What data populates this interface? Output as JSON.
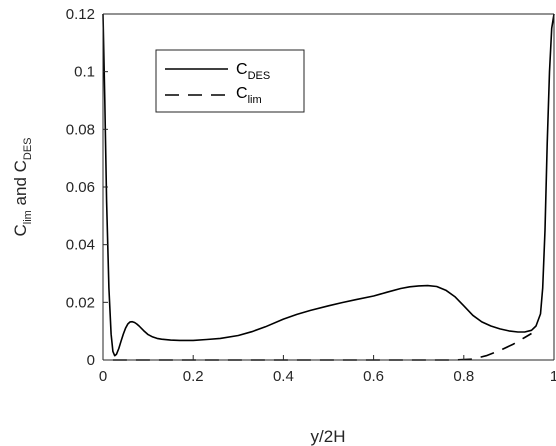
{
  "chart_data": {
    "type": "line",
    "xlabel": "y/2H",
    "ylabel": {
      "main1": "C",
      "sub1": "lim",
      "mid": " and C",
      "sub2": "DES"
    },
    "xlim": [
      0,
      1
    ],
    "ylim": [
      0,
      0.12
    ],
    "xticks": [
      0,
      0.2,
      0.4,
      0.6,
      0.8,
      1
    ],
    "xtick_labels": [
      "0",
      "0.2",
      "0.4",
      "0.6",
      "0.8",
      "1"
    ],
    "yticks": [
      0,
      0.02,
      0.04,
      0.06,
      0.08,
      0.1,
      0.12
    ],
    "ytick_labels": [
      "0",
      "0.02",
      "0.04",
      "0.06",
      "0.08",
      "0.1",
      "0.12"
    ],
    "grid": false,
    "legend_position": "top-left",
    "series": [
      {
        "name_main": "C",
        "name_sub": "DES",
        "style": "solid",
        "color": "#000000",
        "x": [
          0,
          0.004,
          0.008,
          0.013,
          0.018,
          0.022,
          0.026,
          0.03,
          0.035,
          0.04,
          0.045,
          0.05,
          0.055,
          0.06,
          0.065,
          0.07,
          0.075,
          0.08,
          0.09,
          0.1,
          0.11,
          0.12,
          0.13,
          0.15,
          0.17,
          0.2,
          0.23,
          0.26,
          0.3,
          0.33,
          0.36,
          0.4,
          0.43,
          0.46,
          0.5,
          0.53,
          0.56,
          0.6,
          0.63,
          0.66,
          0.68,
          0.7,
          0.72,
          0.74,
          0.76,
          0.78,
          0.8,
          0.82,
          0.84,
          0.86,
          0.88,
          0.9,
          0.92,
          0.935,
          0.95,
          0.96,
          0.97,
          0.975,
          0.98,
          0.985,
          0.99,
          0.995,
          1
        ],
        "y": [
          0.12,
          0.09,
          0.055,
          0.025,
          0.009,
          0.003,
          0.0015,
          0.002,
          0.004,
          0.0065,
          0.009,
          0.011,
          0.0125,
          0.0132,
          0.0133,
          0.013,
          0.0125,
          0.0118,
          0.0102,
          0.0088,
          0.008,
          0.0075,
          0.0072,
          0.0069,
          0.0068,
          0.0068,
          0.0071,
          0.0075,
          0.0085,
          0.0098,
          0.0115,
          0.0142,
          0.0158,
          0.0172,
          0.0188,
          0.0199,
          0.0209,
          0.0222,
          0.0235,
          0.0248,
          0.0254,
          0.0257,
          0.0258,
          0.0255,
          0.0242,
          0.022,
          0.0188,
          0.0155,
          0.0132,
          0.0118,
          0.0108,
          0.0101,
          0.0097,
          0.0097,
          0.0103,
          0.0118,
          0.016,
          0.025,
          0.045,
          0.075,
          0.1,
          0.115,
          0.12
        ]
      },
      {
        "name_main": "C",
        "name_sub": "lim",
        "style": "dashed",
        "color": "#000000",
        "x": [
          0.022,
          0.1,
          0.2,
          0.3,
          0.4,
          0.5,
          0.6,
          0.7,
          0.78,
          0.82,
          0.85,
          0.88,
          0.91,
          0.935,
          0.95
        ],
        "y": [
          0,
          0,
          0,
          0,
          0,
          0,
          0,
          0,
          0,
          0.0003,
          0.0015,
          0.0033,
          0.0055,
          0.0078,
          0.0092
        ]
      }
    ]
  }
}
